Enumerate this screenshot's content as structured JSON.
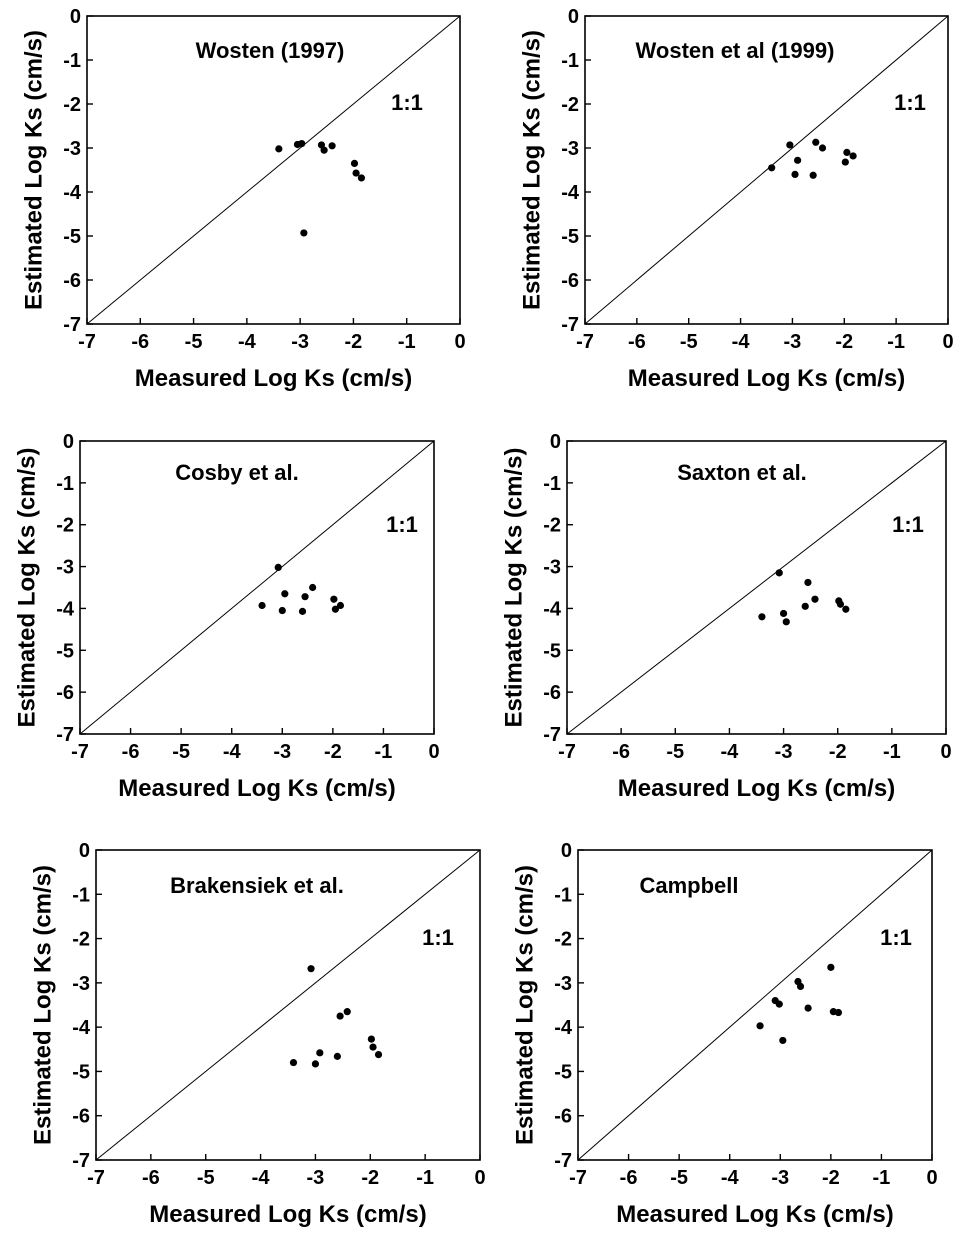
{
  "figure": {
    "background": "#ffffff",
    "ink_color": "#000000"
  },
  "chart_data": [
    {
      "type": "scatter",
      "title": "Wosten (1997)",
      "annotation": "1:1",
      "xlabel": "Measured Log Ks (cm/s)",
      "ylabel": "Estimated Log Ks (cm/s)",
      "xlim": [
        -7,
        0
      ],
      "ylim": [
        -7,
        0
      ],
      "x_ticks": [
        "-7",
        "-6",
        "-5",
        "-4",
        "-3",
        "-2",
        "-1",
        "0"
      ],
      "y_ticks": [
        "0",
        "-1",
        "-2",
        "-3",
        "-4",
        "-5",
        "-6",
        "-7"
      ],
      "reference_line": "1:1",
      "grid": false,
      "points": [
        {
          "x": -3.4,
          "y": -3.02
        },
        {
          "x": -3.05,
          "y": -2.92
        },
        {
          "x": -2.97,
          "y": -2.9
        },
        {
          "x": -2.6,
          "y": -2.93
        },
        {
          "x": -2.55,
          "y": -3.05
        },
        {
          "x": -2.4,
          "y": -2.95
        },
        {
          "x": -1.98,
          "y": -3.35
        },
        {
          "x": -1.95,
          "y": -3.57
        },
        {
          "x": -1.85,
          "y": -3.68
        },
        {
          "x": -2.93,
          "y": -4.93
        }
      ]
    },
    {
      "type": "scatter",
      "title": "Wosten et al (1999)",
      "annotation": "1:1",
      "xlabel": "Measured Log Ks (cm/s)",
      "ylabel": "Estimated Log Ks (cm/s)",
      "xlim": [
        -7,
        0
      ],
      "ylim": [
        -7,
        0
      ],
      "x_ticks": [
        "-7",
        "-6",
        "-5",
        "-4",
        "-3",
        "-2",
        "-1",
        "0"
      ],
      "y_ticks": [
        "0",
        "-1",
        "-2",
        "-3",
        "-4",
        "-5",
        "-6",
        "-7"
      ],
      "reference_line": "1:1",
      "grid": false,
      "points": [
        {
          "x": -3.4,
          "y": -3.45
        },
        {
          "x": -3.05,
          "y": -2.93
        },
        {
          "x": -2.95,
          "y": -3.6
        },
        {
          "x": -2.9,
          "y": -3.28
        },
        {
          "x": -2.6,
          "y": -3.62
        },
        {
          "x": -2.55,
          "y": -2.87
        },
        {
          "x": -2.42,
          "y": -3.0
        },
        {
          "x": -1.98,
          "y": -3.32
        },
        {
          "x": -1.95,
          "y": -3.1
        },
        {
          "x": -1.83,
          "y": -3.18
        }
      ]
    },
    {
      "type": "scatter",
      "title": "Cosby et al.",
      "annotation": "1:1",
      "xlabel": "Measured Log Ks (cm/s)",
      "ylabel": "Estimated Log Ks (cm/s)",
      "xlim": [
        -7,
        0
      ],
      "ylim": [
        -7,
        0
      ],
      "x_ticks": [
        "-7",
        "-6",
        "-5",
        "-4",
        "-3",
        "-2",
        "-1",
        "0"
      ],
      "y_ticks": [
        "0",
        "-1",
        "-2",
        "-3",
        "-4",
        "-5",
        "-6",
        "-7"
      ],
      "reference_line": "1:1",
      "grid": false,
      "points": [
        {
          "x": -3.4,
          "y": -3.93
        },
        {
          "x": -3.08,
          "y": -3.02
        },
        {
          "x": -3.0,
          "y": -4.05
        },
        {
          "x": -2.95,
          "y": -3.65
        },
        {
          "x": -2.6,
          "y": -4.07
        },
        {
          "x": -2.55,
          "y": -3.72
        },
        {
          "x": -2.4,
          "y": -3.5
        },
        {
          "x": -1.98,
          "y": -3.78
        },
        {
          "x": -1.95,
          "y": -4.02
        },
        {
          "x": -1.85,
          "y": -3.93
        }
      ]
    },
    {
      "type": "scatter",
      "title": "Saxton et al.",
      "annotation": "1:1",
      "xlabel": "Measured Log Ks (cm/s)",
      "ylabel": "Estimated Log Ks (cm/s)",
      "xlim": [
        -7,
        0
      ],
      "ylim": [
        -7,
        0
      ],
      "x_ticks": [
        "-7",
        "-6",
        "-5",
        "-4",
        "-3",
        "-2",
        "-1",
        "0"
      ],
      "y_ticks": [
        "0",
        "-1",
        "-2",
        "-3",
        "-4",
        "-5",
        "-6",
        "-7"
      ],
      "reference_line": "1:1",
      "grid": false,
      "points": [
        {
          "x": -3.4,
          "y": -4.2
        },
        {
          "x": -3.08,
          "y": -3.15
        },
        {
          "x": -3.0,
          "y": -4.12
        },
        {
          "x": -2.95,
          "y": -4.32
        },
        {
          "x": -2.6,
          "y": -3.95
        },
        {
          "x": -2.55,
          "y": -3.38
        },
        {
          "x": -2.42,
          "y": -3.78
        },
        {
          "x": -1.98,
          "y": -3.82
        },
        {
          "x": -1.95,
          "y": -3.9
        },
        {
          "x": -1.85,
          "y": -4.02
        }
      ]
    },
    {
      "type": "scatter",
      "title": "Brakensiek et al.",
      "annotation": "1:1",
      "xlabel": "Measured Log Ks (cm/s)",
      "ylabel": "Estimated Log Ks (cm/s)",
      "xlim": [
        -7,
        0
      ],
      "ylim": [
        -7,
        0
      ],
      "x_ticks": [
        "-7",
        "-6",
        "-5",
        "-4",
        "-3",
        "-2",
        "-1",
        "0"
      ],
      "y_ticks": [
        "0",
        "-1",
        "-2",
        "-3",
        "-4",
        "-5",
        "-6",
        "-7"
      ],
      "reference_line": "1:1",
      "grid": false,
      "points": [
        {
          "x": -3.4,
          "y": -4.8
        },
        {
          "x": -3.08,
          "y": -2.68
        },
        {
          "x": -3.0,
          "y": -4.83
        },
        {
          "x": -2.92,
          "y": -4.58
        },
        {
          "x": -2.6,
          "y": -4.66
        },
        {
          "x": -2.55,
          "y": -3.75
        },
        {
          "x": -2.42,
          "y": -3.65
        },
        {
          "x": -1.98,
          "y": -4.27
        },
        {
          "x": -1.95,
          "y": -4.45
        },
        {
          "x": -1.85,
          "y": -4.62
        }
      ]
    },
    {
      "type": "scatter",
      "title": "Campbell",
      "annotation": "1:1",
      "xlabel": "Measured Log Ks (cm/s)",
      "ylabel": "Estimated Log Ks (cm/s)",
      "xlim": [
        -7,
        0
      ],
      "ylim": [
        -7,
        0
      ],
      "x_ticks": [
        "-7",
        "-6",
        "-5",
        "-4",
        "-3",
        "-2",
        "-1",
        "0"
      ],
      "y_ticks": [
        "0",
        "-1",
        "-2",
        "-3",
        "-4",
        "-5",
        "-6",
        "-7"
      ],
      "reference_line": "1:1",
      "grid": false,
      "points": [
        {
          "x": -3.4,
          "y": -3.97
        },
        {
          "x": -3.1,
          "y": -3.4
        },
        {
          "x": -3.02,
          "y": -3.48
        },
        {
          "x": -2.95,
          "y": -4.3
        },
        {
          "x": -2.65,
          "y": -2.97
        },
        {
          "x": -2.6,
          "y": -3.08
        },
        {
          "x": -2.45,
          "y": -3.57
        },
        {
          "x": -2.0,
          "y": -2.65
        },
        {
          "x": -1.95,
          "y": -3.65
        },
        {
          "x": -1.85,
          "y": -3.67
        }
      ]
    }
  ]
}
